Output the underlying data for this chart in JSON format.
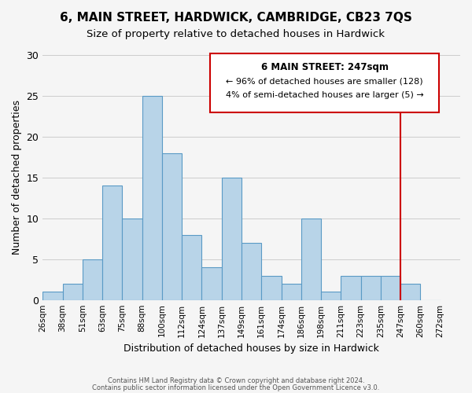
{
  "title": "6, MAIN STREET, HARDWICK, CAMBRIDGE, CB23 7QS",
  "subtitle": "Size of property relative to detached houses in Hardwick",
  "xlabel": "Distribution of detached houses by size in Hardwick",
  "ylabel": "Number of detached properties",
  "bin_labels": [
    "26sqm",
    "38sqm",
    "51sqm",
    "63sqm",
    "75sqm",
    "88sqm",
    "100sqm",
    "112sqm",
    "124sqm",
    "137sqm",
    "149sqm",
    "161sqm",
    "174sqm",
    "186sqm",
    "198sqm",
    "211sqm",
    "223sqm",
    "235sqm",
    "247sqm",
    "260sqm",
    "272sqm"
  ],
  "bar_values": [
    1,
    2,
    5,
    14,
    10,
    25,
    18,
    8,
    4,
    15,
    7,
    3,
    2,
    10,
    1,
    3,
    3,
    3,
    2,
    0
  ],
  "bar_color": "#b8d4e8",
  "bar_edge_color": "#5a9ac5",
  "grid_color": "#cccccc",
  "vline_label": "247sqm",
  "vline_color": "#cc0000",
  "annotation_box_color": "#cc0000",
  "annotation_title": "6 MAIN STREET: 247sqm",
  "annotation_line1": "← 96% of detached houses are smaller (128)",
  "annotation_line2": "4% of semi-detached houses are larger (5) →",
  "ylim": [
    0,
    30
  ],
  "footer1": "Contains HM Land Registry data © Crown copyright and database right 2024.",
  "footer2": "Contains public sector information licensed under the Open Government Licence v3.0.",
  "background_color": "#f5f5f5"
}
